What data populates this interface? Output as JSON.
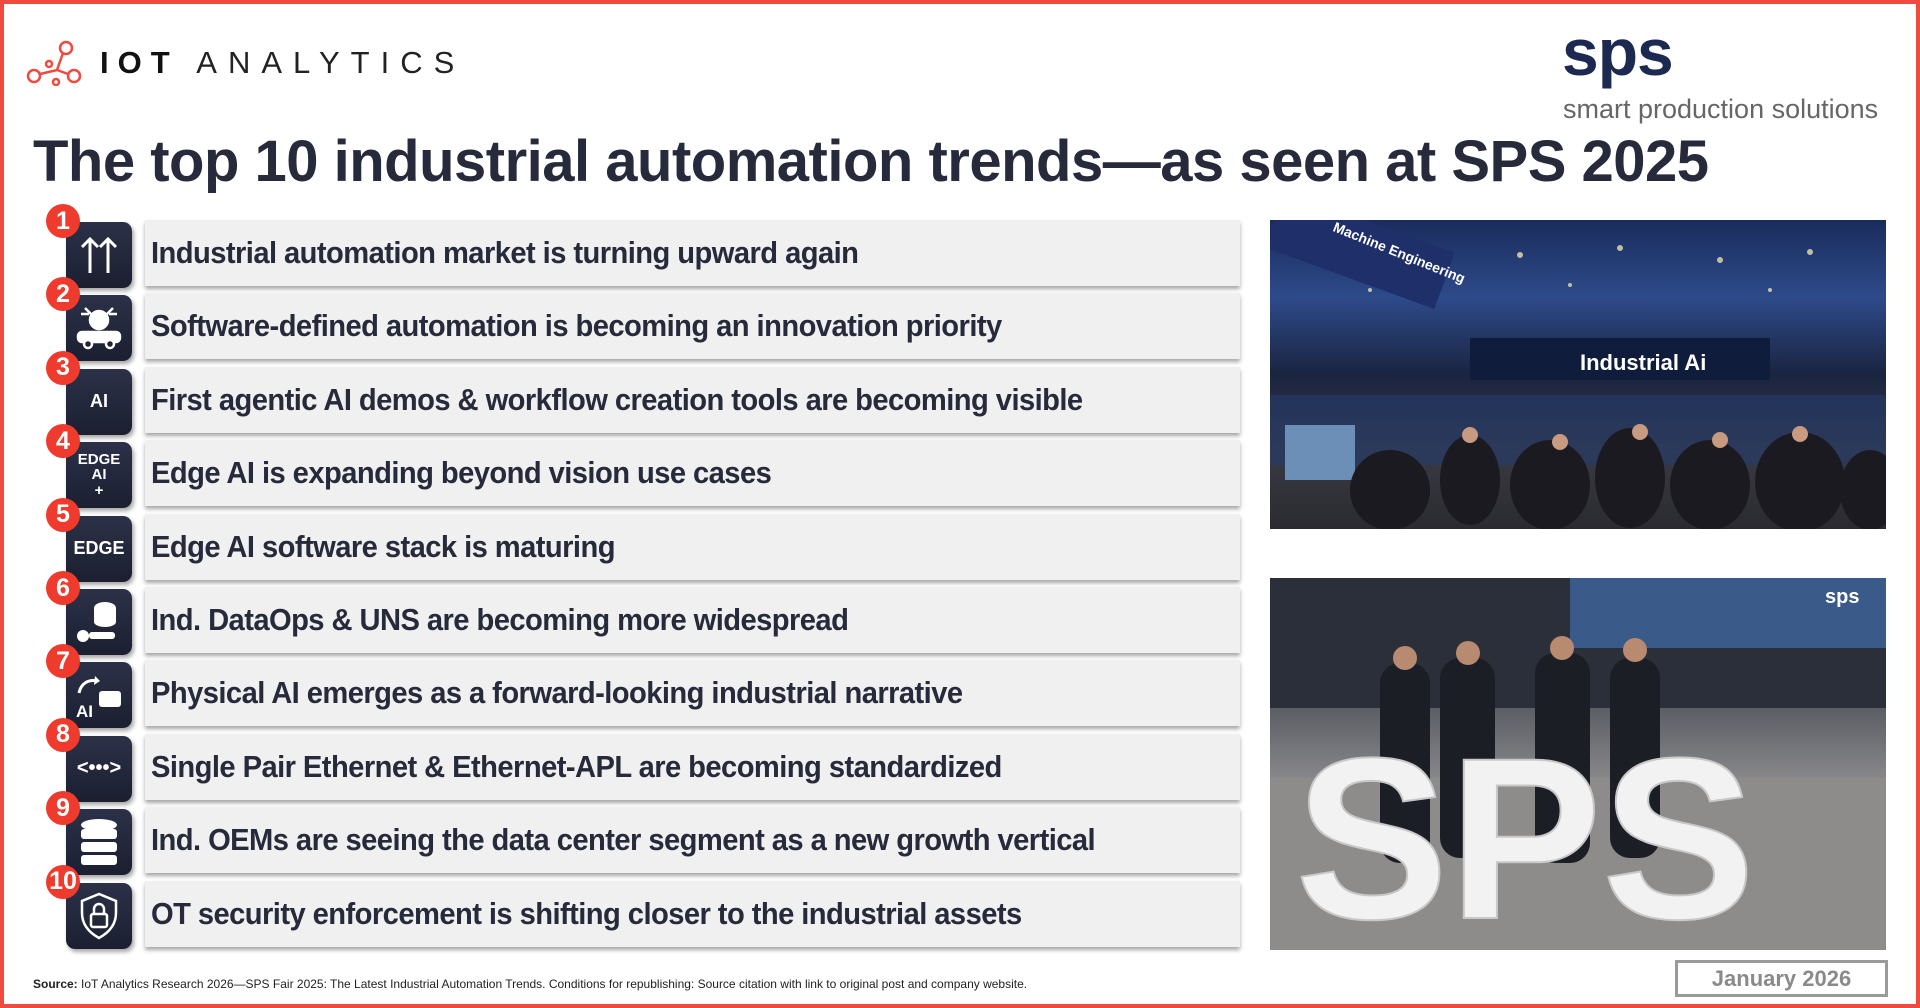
{
  "header": {
    "logo_bold": "IOT",
    "logo_light": "ANALYTICS",
    "partner_logo": "sps",
    "partner_tagline": "smart production solutions",
    "title": "The top 10 industrial automation trends—as seen at SPS 2025"
  },
  "trends": [
    {
      "num": "1",
      "icon": "arrows-up-icon",
      "label": "Industrial automation market is turning upward again"
    },
    {
      "num": "2",
      "icon": "software-car-icon",
      "label": "Software-defined automation is becoming an innovation priority"
    },
    {
      "num": "3",
      "icon": "ai-agent-icon",
      "label": "First agentic AI demos & workflow creation tools are becoming visible",
      "icon_text": "AI"
    },
    {
      "num": "4",
      "icon": "edge-ai-plus-icon",
      "label": "Edge AI is expanding beyond vision use cases",
      "icon_text": "EDGE AI +"
    },
    {
      "num": "5",
      "icon": "edge-chip-icon",
      "label": "Edge AI software stack is maturing",
      "icon_text": "EDGE"
    },
    {
      "num": "6",
      "icon": "dataops-icon",
      "label": "Ind. DataOps & UNS are becoming more widespread"
    },
    {
      "num": "7",
      "icon": "physical-ai-icon",
      "label": "Physical AI emerges as a forward-looking industrial narrative",
      "icon_text": "AI"
    },
    {
      "num": "8",
      "icon": "ethernet-icon",
      "label": "Single Pair Ethernet & Ethernet-APL are becoming standardized",
      "icon_text": "<•••>"
    },
    {
      "num": "9",
      "icon": "database-icon",
      "label": "Ind. OEMs are seeing the data center segment as a new growth vertical"
    },
    {
      "num": "10",
      "icon": "shield-lock-icon",
      "label": "OT security  enforcement is shifting closer to the industrial assets"
    }
  ],
  "photos": {
    "hall_sign": "Industrial Ai",
    "hall_banner": "Machine Engineering",
    "sculpture_text": "SPS",
    "screen_logo": "sps"
  },
  "footer": {
    "source_label": "Source:",
    "source_text": " IoT Analytics Research 2026—SPS Fair 2025: The Latest Industrial Automation Trends. Conditions for republishing: Source citation with link to original post and company website.",
    "date": "January 2026"
  },
  "colors": {
    "accent": "#f04a3e",
    "title": "#262a3b",
    "icon_bg": "#1f2335",
    "sps_brand": "#1c2a52"
  }
}
